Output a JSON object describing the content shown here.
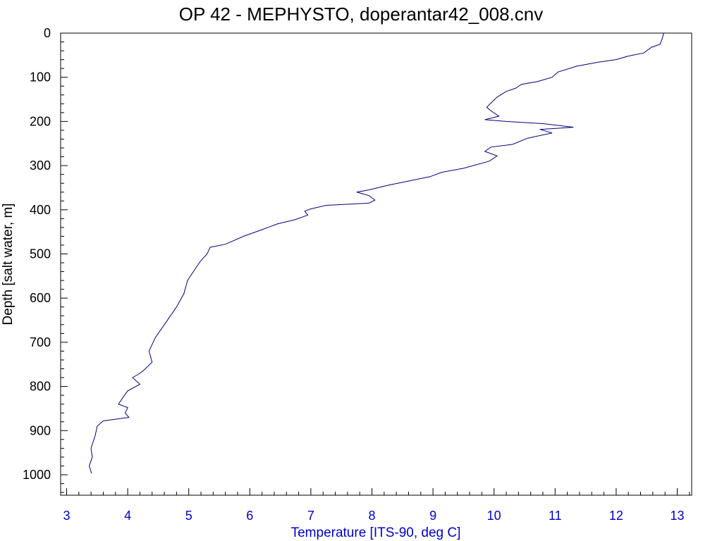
{
  "chart_data": {
    "type": "line",
    "title": "OP 42 - MEPHYSTO, doperantar42_008.cnv",
    "xlabel": "Temperature [ITS-90, deg C]",
    "ylabel": "Depth [salt water, m]",
    "xlim": [
      3,
      13.2
    ],
    "ylim": [
      1050,
      0
    ],
    "y_inverted": true,
    "x_ticks": [
      3,
      4,
      5,
      6,
      7,
      8,
      9,
      10,
      11,
      12,
      13
    ],
    "y_ticks": [
      0,
      100,
      200,
      300,
      400,
      500,
      600,
      700,
      800,
      900,
      1000
    ],
    "grid": false,
    "colors": {
      "series": "#000080",
      "x_axis": "#0000cc",
      "y_axis": "#000000"
    },
    "series": [
      {
        "points": [
          [
            12.78,
            0
          ],
          [
            12.76,
            10
          ],
          [
            12.72,
            25
          ],
          [
            12.58,
            32
          ],
          [
            12.45,
            45
          ],
          [
            12.2,
            52
          ],
          [
            12.0,
            60
          ],
          [
            11.7,
            66
          ],
          [
            11.35,
            75
          ],
          [
            11.05,
            88
          ],
          [
            10.95,
            100
          ],
          [
            10.7,
            110
          ],
          [
            10.45,
            116
          ],
          [
            10.35,
            125
          ],
          [
            10.2,
            132
          ],
          [
            10.05,
            145
          ],
          [
            9.95,
            158
          ],
          [
            9.88,
            168
          ],
          [
            9.95,
            176
          ],
          [
            10.08,
            188
          ],
          [
            9.85,
            196
          ],
          [
            10.2,
            200
          ],
          [
            10.8,
            205
          ],
          [
            11.3,
            213
          ],
          [
            10.75,
            218
          ],
          [
            10.95,
            226
          ],
          [
            10.55,
            238
          ],
          [
            10.3,
            252
          ],
          [
            9.95,
            258
          ],
          [
            9.85,
            268
          ],
          [
            10.05,
            278
          ],
          [
            9.92,
            290
          ],
          [
            9.5,
            306
          ],
          [
            9.15,
            315
          ],
          [
            8.95,
            325
          ],
          [
            8.6,
            335
          ],
          [
            8.25,
            345
          ],
          [
            7.95,
            355
          ],
          [
            7.75,
            360
          ],
          [
            7.95,
            368
          ],
          [
            8.05,
            378
          ],
          [
            7.95,
            385
          ],
          [
            7.25,
            390
          ],
          [
            7.0,
            398
          ],
          [
            6.9,
            403
          ],
          [
            6.95,
            412
          ],
          [
            6.75,
            422
          ],
          [
            6.45,
            432
          ],
          [
            6.2,
            445
          ],
          [
            5.9,
            460
          ],
          [
            5.6,
            478
          ],
          [
            5.35,
            485
          ],
          [
            5.3,
            500
          ],
          [
            5.2,
            515
          ],
          [
            5.1,
            535
          ],
          [
            4.98,
            560
          ],
          [
            4.92,
            590
          ],
          [
            4.8,
            620
          ],
          [
            4.6,
            660
          ],
          [
            4.45,
            690
          ],
          [
            4.35,
            720
          ],
          [
            4.4,
            745
          ],
          [
            4.25,
            765
          ],
          [
            4.18,
            772
          ],
          [
            4.08,
            780
          ],
          [
            4.2,
            795
          ],
          [
            4.0,
            810
          ],
          [
            3.92,
            825
          ],
          [
            3.85,
            840
          ],
          [
            4.0,
            848
          ],
          [
            3.96,
            860
          ],
          [
            4.02,
            870
          ],
          [
            3.6,
            878
          ],
          [
            3.5,
            890
          ],
          [
            3.47,
            910
          ],
          [
            3.4,
            940
          ],
          [
            3.42,
            960
          ],
          [
            3.37,
            980
          ],
          [
            3.41,
            997
          ]
        ]
      }
    ]
  }
}
